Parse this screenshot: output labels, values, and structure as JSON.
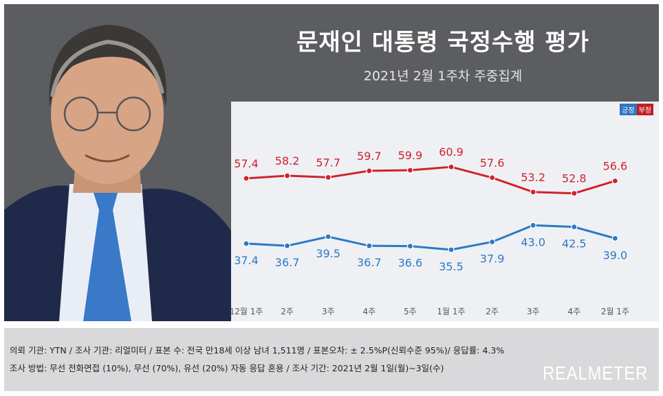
{
  "title": "문재인 대통령 국정수행 평가",
  "subtitle": "2021년 2월 1주차 주중집계",
  "legend": {
    "positive": "긍정",
    "negative": "부정"
  },
  "colors": {
    "positive": "#2d78c4",
    "negative": "#d0222a",
    "header": "#5b5d60",
    "plot_bg": "#eef0f4"
  },
  "chart_data": {
    "type": "line",
    "title": "문재인 대통령 국정수행 평가",
    "subtitle": "2021년 2월 1주차 주중집계",
    "categories": [
      "12월 1주",
      "2주",
      "3주",
      "4주",
      "5주",
      "1월 1주",
      "2주",
      "3주",
      "4주",
      "2월 1주"
    ],
    "series": [
      {
        "name": "부정",
        "color": "#d0222a",
        "values": [
          57.4,
          58.2,
          57.7,
          59.7,
          59.9,
          60.9,
          57.6,
          53.2,
          52.8,
          56.6
        ]
      },
      {
        "name": "긍정",
        "color": "#2d78c4",
        "values": [
          37.4,
          36.7,
          39.5,
          36.7,
          36.6,
          35.5,
          37.9,
          43.0,
          42.5,
          39.0
        ]
      }
    ],
    "value_labels": {
      "부정": [
        "57.4",
        "58.2",
        "57.7",
        "59.7",
        "59.9",
        "60.9",
        "57.6",
        "53.2",
        "52.8",
        "56.6"
      ],
      "긍정": [
        "37.4",
        "36.7",
        "39.5",
        "36.7",
        "36.6",
        "35.5",
        "37.9",
        "43.0",
        "42.5",
        "39.0"
      ]
    },
    "grid": false,
    "legend_position": "top-right"
  },
  "footer": {
    "line1": "의뢰 기관: YTN / 조사 기관: 리얼미터 / 표본 수: 전국 만18세 이상 남녀 1,511명 / 표본오차: ± 2.5%P(신뢰수준 95%)/ 응답률: 4.3%",
    "line2": "조사 방법: 무선 전화면접 (10%), 무선 (70%), 유선 (20%)  자동 응답 혼용 / 조사 기간: 2021년 2월 1일(월)~3일(수)",
    "brand": "REALMETER"
  }
}
